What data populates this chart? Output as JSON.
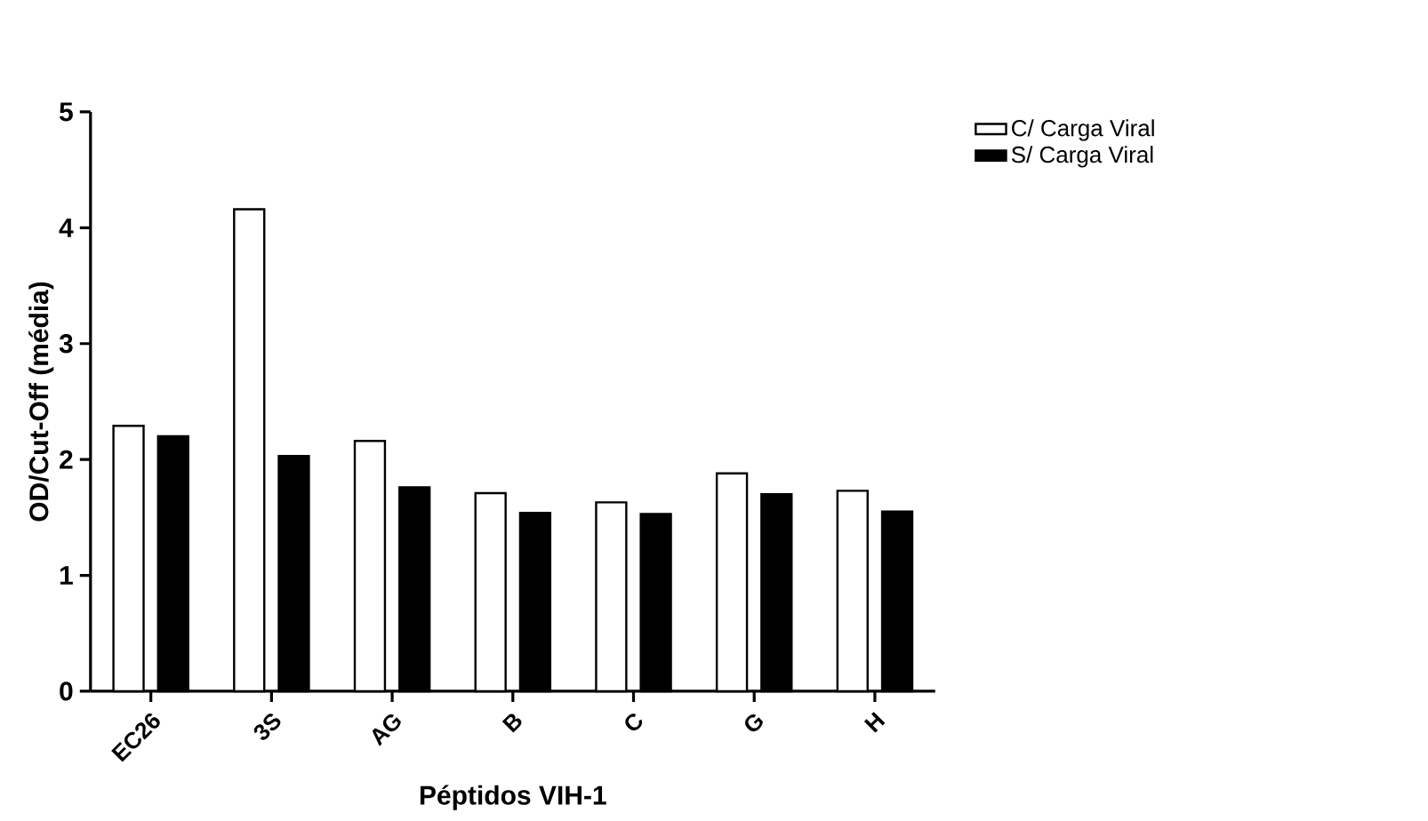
{
  "chart_data": {
    "type": "bar",
    "xlabel": "Péptidos VIH-1",
    "ylabel": "OD/Cut-Off (média)",
    "categories": [
      "EC26",
      "3S",
      "AG",
      "B",
      "C",
      "G",
      "H"
    ],
    "series": [
      {
        "name": "C/ Carga Viral",
        "color": "#ffffff",
        "values": [
          2.29,
          4.16,
          2.16,
          1.71,
          1.63,
          1.88,
          1.73
        ]
      },
      {
        "name": "S/ Carga Viral",
        "color": "#000000",
        "values": [
          2.2,
          2.03,
          1.76,
          1.54,
          1.53,
          1.7,
          1.55
        ]
      }
    ],
    "ylim": [
      0,
      5
    ],
    "yticks": [
      0,
      1,
      2,
      3,
      4,
      5
    ],
    "grid": false,
    "legend": "top right"
  }
}
